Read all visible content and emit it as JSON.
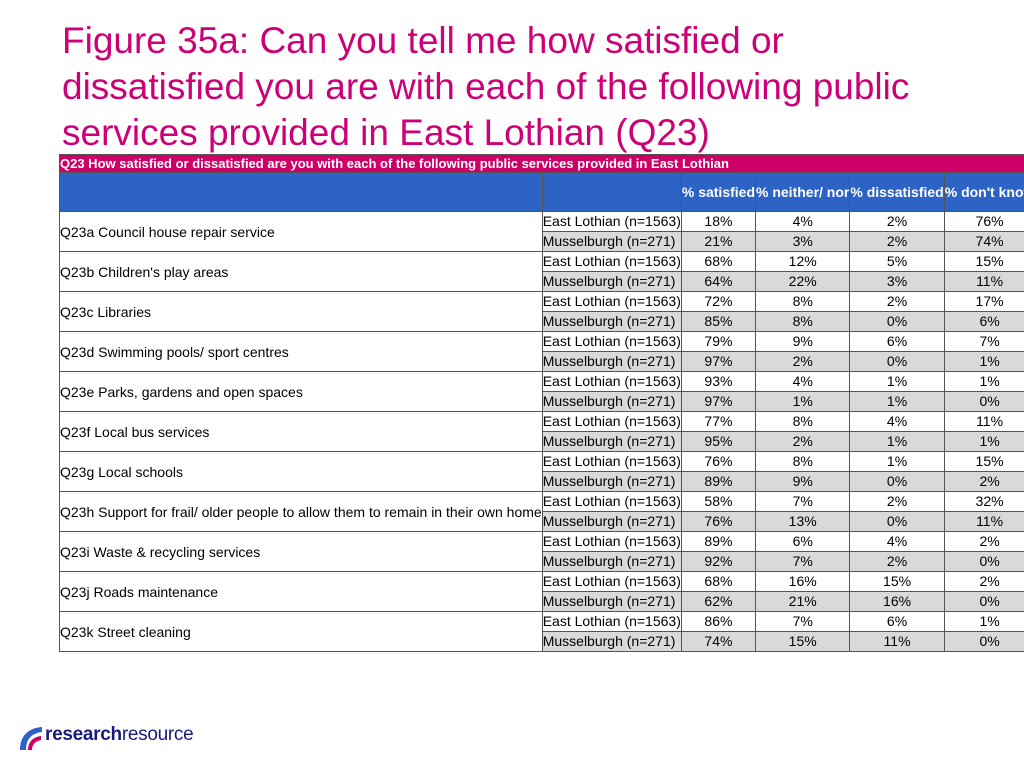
{
  "title": "Figure 35a: Can you tell me how satisfied or dissatisfied you are with each of the following public services provided in East Lothian (Q23)",
  "table": {
    "caption": "Q23 How satisfied or dissatisfied are you with each of the following public services provided in East Lothian",
    "headers": [
      "",
      "",
      "% satisfied",
      "% neither/ nor",
      "% dissatisfied",
      "% don't know"
    ],
    "groups": [
      {
        "question": "Q23a Council house repair service",
        "rows": [
          {
            "area": "East Lothian (n=1563)",
            "values": [
              "18%",
              "4%",
              "2%",
              "76%"
            ]
          },
          {
            "area": "Musselburgh (n=271)",
            "values": [
              "21%",
              "3%",
              "2%",
              "74%"
            ]
          }
        ]
      },
      {
        "question": "Q23b Children's play areas",
        "rows": [
          {
            "area": "East Lothian (n=1563)",
            "values": [
              "68%",
              "12%",
              "5%",
              "15%"
            ]
          },
          {
            "area": "Musselburgh (n=271)",
            "values": [
              "64%",
              "22%",
              "3%",
              "11%"
            ]
          }
        ]
      },
      {
        "question": "Q23c Libraries",
        "rows": [
          {
            "area": "East Lothian (n=1563)",
            "values": [
              "72%",
              "8%",
              "2%",
              "17%"
            ]
          },
          {
            "area": "Musselburgh (n=271)",
            "values": [
              "85%",
              "8%",
              "0%",
              "6%"
            ]
          }
        ]
      },
      {
        "question": "Q23d Swimming pools/ sport centres",
        "rows": [
          {
            "area": "East Lothian (n=1563)",
            "values": [
              "79%",
              "9%",
              "6%",
              "7%"
            ]
          },
          {
            "area": "Musselburgh (n=271)",
            "values": [
              "97%",
              "2%",
              "0%",
              "1%"
            ]
          }
        ]
      },
      {
        "question": "Q23e Parks, gardens and open spaces",
        "rows": [
          {
            "area": "East Lothian (n=1563)",
            "values": [
              "93%",
              "4%",
              "1%",
              "1%"
            ]
          },
          {
            "area": "Musselburgh (n=271)",
            "values": [
              "97%",
              "1%",
              "1%",
              "0%"
            ]
          }
        ]
      },
      {
        "question": "Q23f Local bus services",
        "rows": [
          {
            "area": "East Lothian (n=1563)",
            "values": [
              "77%",
              "8%",
              "4%",
              "11%"
            ]
          },
          {
            "area": "Musselburgh (n=271)",
            "values": [
              "95%",
              "2%",
              "1%",
              "1%"
            ]
          }
        ]
      },
      {
        "question": "Q23g Local schools",
        "rows": [
          {
            "area": "East Lothian (n=1563)",
            "values": [
              "76%",
              "8%",
              "1%",
              "15%"
            ]
          },
          {
            "area": "Musselburgh (n=271)",
            "values": [
              "89%",
              "9%",
              "0%",
              "2%"
            ]
          }
        ]
      },
      {
        "question": "Q23h Support for frail/ older people to allow them to remain in their own home",
        "rows": [
          {
            "area": "East Lothian (n=1563)",
            "values": [
              "58%",
              "7%",
              "2%",
              "32%"
            ]
          },
          {
            "area": "Musselburgh (n=271)",
            "values": [
              "76%",
              "13%",
              "0%",
              "11%"
            ]
          }
        ]
      },
      {
        "question": "Q23i Waste & recycling services",
        "rows": [
          {
            "area": "East Lothian (n=1563)",
            "values": [
              "89%",
              "6%",
              "4%",
              "2%"
            ]
          },
          {
            "area": "Musselburgh (n=271)",
            "values": [
              "92%",
              "7%",
              "2%",
              "0%"
            ]
          }
        ]
      },
      {
        "question": "Q23j Roads maintenance",
        "rows": [
          {
            "area": "East Lothian (n=1563)",
            "values": [
              "68%",
              "16%",
              "15%",
              "2%"
            ]
          },
          {
            "area": "Musselburgh (n=271)",
            "values": [
              "62%",
              "21%",
              "16%",
              "0%"
            ]
          }
        ]
      },
      {
        "question": "Q23k Street cleaning",
        "rows": [
          {
            "area": "East Lothian (n=1563)",
            "values": [
              "86%",
              "7%",
              "6%",
              "1%"
            ]
          },
          {
            "area": "Musselburgh (n=271)",
            "values": [
              "74%",
              "15%",
              "11%",
              "0%"
            ]
          }
        ]
      }
    ]
  },
  "logo": {
    "bold": "research",
    "regular": "resource"
  },
  "colors": {
    "title": "#cc0077",
    "caption_bg": "#cc0066",
    "header_bg": "#2e63c6",
    "alt_row": "#d9d9d9",
    "logo": "#1a1a7a"
  }
}
